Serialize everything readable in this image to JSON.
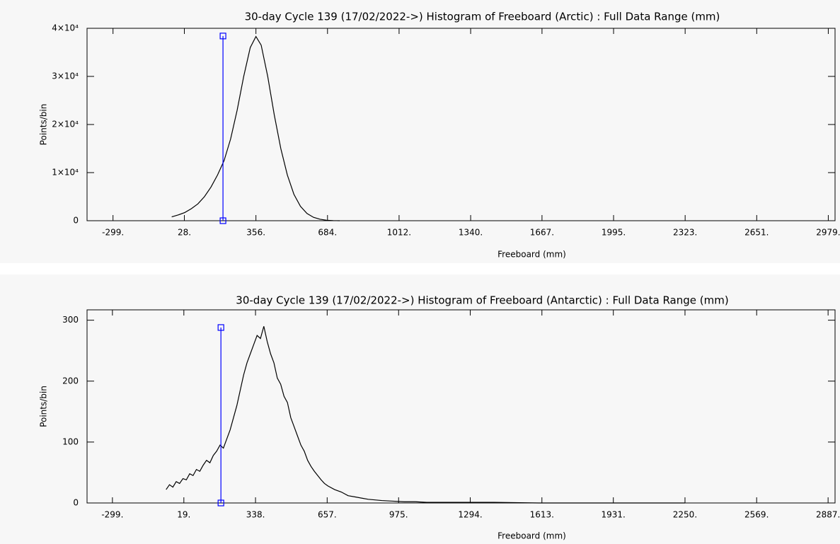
{
  "chart_data": [
    {
      "type": "line",
      "title": "30-day Cycle 139 (17/02/2022->) Histogram of Freeboard (Arctic) :  Full Data Range (mm)",
      "xlabel": "Freeboard (mm)",
      "ylabel": "Points/bin",
      "x": [
        -30,
        0,
        30,
        60,
        90,
        120,
        150,
        180,
        210,
        240,
        270,
        300,
        330,
        356,
        380,
        410,
        440,
        470,
        500,
        530,
        560,
        590,
        620,
        650,
        680,
        710,
        740
      ],
      "values": [
        800,
        1200,
        1700,
        2500,
        3500,
        5000,
        7000,
        9500,
        12500,
        17000,
        23000,
        30000,
        36000,
        38300,
        36500,
        30000,
        22000,
        15000,
        9500,
        5500,
        3000,
        1500,
        700,
        300,
        100,
        30,
        0
      ],
      "color": "#000000",
      "reference_line": {
        "x": [
          205,
          205
        ],
        "y": [
          0,
          38400
        ],
        "color": "#0000ff"
      },
      "xlim": [
        -418,
        3010
      ],
      "ylim": [
        0,
        40000
      ],
      "xticks": [
        {
          "value": -299,
          "label": "-299."
        },
        {
          "value": 28,
          "label": "28."
        },
        {
          "value": 356,
          "label": "356."
        },
        {
          "value": 684,
          "label": "684."
        },
        {
          "value": 1012,
          "label": "1012."
        },
        {
          "value": 1340,
          "label": "1340."
        },
        {
          "value": 1667,
          "label": "1667."
        },
        {
          "value": 1995,
          "label": "1995."
        },
        {
          "value": 2323,
          "label": "2323."
        },
        {
          "value": 2651,
          "label": "2651."
        },
        {
          "value": 2979,
          "label": "2979."
        }
      ],
      "yticks": [
        0,
        {
          "value": 10000,
          "label": "1×10⁴"
        },
        {
          "value": 20000,
          "label": "2×10⁴"
        },
        {
          "value": 30000,
          "label": "3×10⁴"
        },
        {
          "value": 40000,
          "label": "4×10⁴"
        }
      ]
    },
    {
      "type": "line",
      "title": "30-day Cycle 139 (17/02/2022->) Histogram of Freeboard (Antarctic) :  Full Data Range (mm)",
      "xlabel": "Freeboard (mm)",
      "ylabel": "Points/bin",
      "x": [
        -60,
        -45,
        -30,
        -15,
        0,
        15,
        30,
        45,
        60,
        75,
        90,
        105,
        120,
        135,
        150,
        165,
        180,
        195,
        210,
        225,
        240,
        255,
        270,
        285,
        300,
        315,
        330,
        345,
        360,
        375,
        390,
        405,
        420,
        435,
        450,
        465,
        480,
        495,
        510,
        525,
        540,
        555,
        570,
        585,
        600,
        615,
        630,
        645,
        660,
        690,
        720,
        750,
        780,
        810,
        840,
        870,
        900,
        950,
        1000,
        1050,
        1100,
        1200,
        1300,
        1400,
        1600,
        1800,
        2000,
        2250
      ],
      "values": [
        22,
        30,
        26,
        35,
        32,
        40,
        38,
        48,
        45,
        55,
        52,
        62,
        70,
        66,
        78,
        85,
        95,
        90,
        105,
        120,
        140,
        160,
        185,
        210,
        230,
        245,
        260,
        275,
        270,
        290,
        265,
        245,
        230,
        205,
        195,
        175,
        165,
        140,
        125,
        110,
        95,
        85,
        70,
        60,
        52,
        45,
        38,
        32,
        28,
        22,
        18,
        12,
        10,
        8,
        6,
        5,
        4,
        3,
        2,
        2,
        1,
        1,
        1,
        1,
        0,
        0,
        0,
        0
      ],
      "color": "#000000",
      "reference_line": {
        "x": [
          184,
          184
        ],
        "y": [
          0,
          288
        ],
        "color": "#0000ff"
      },
      "xlim": [
        -412,
        2918
      ],
      "ylim": [
        0,
        317
      ],
      "xticks": [
        {
          "value": -299,
          "label": "-299."
        },
        {
          "value": 19,
          "label": "19."
        },
        {
          "value": 338,
          "label": "338."
        },
        {
          "value": 657,
          "label": "657."
        },
        {
          "value": 975,
          "label": "975."
        },
        {
          "value": 1294,
          "label": "1294."
        },
        {
          "value": 1613,
          "label": "1613."
        },
        {
          "value": 1931,
          "label": "1931."
        },
        {
          "value": 2250,
          "label": "2250."
        },
        {
          "value": 2569,
          "label": "2569."
        },
        {
          "value": 2887,
          "label": "2887."
        }
      ],
      "yticks": [
        0,
        100,
        200,
        300
      ]
    }
  ]
}
